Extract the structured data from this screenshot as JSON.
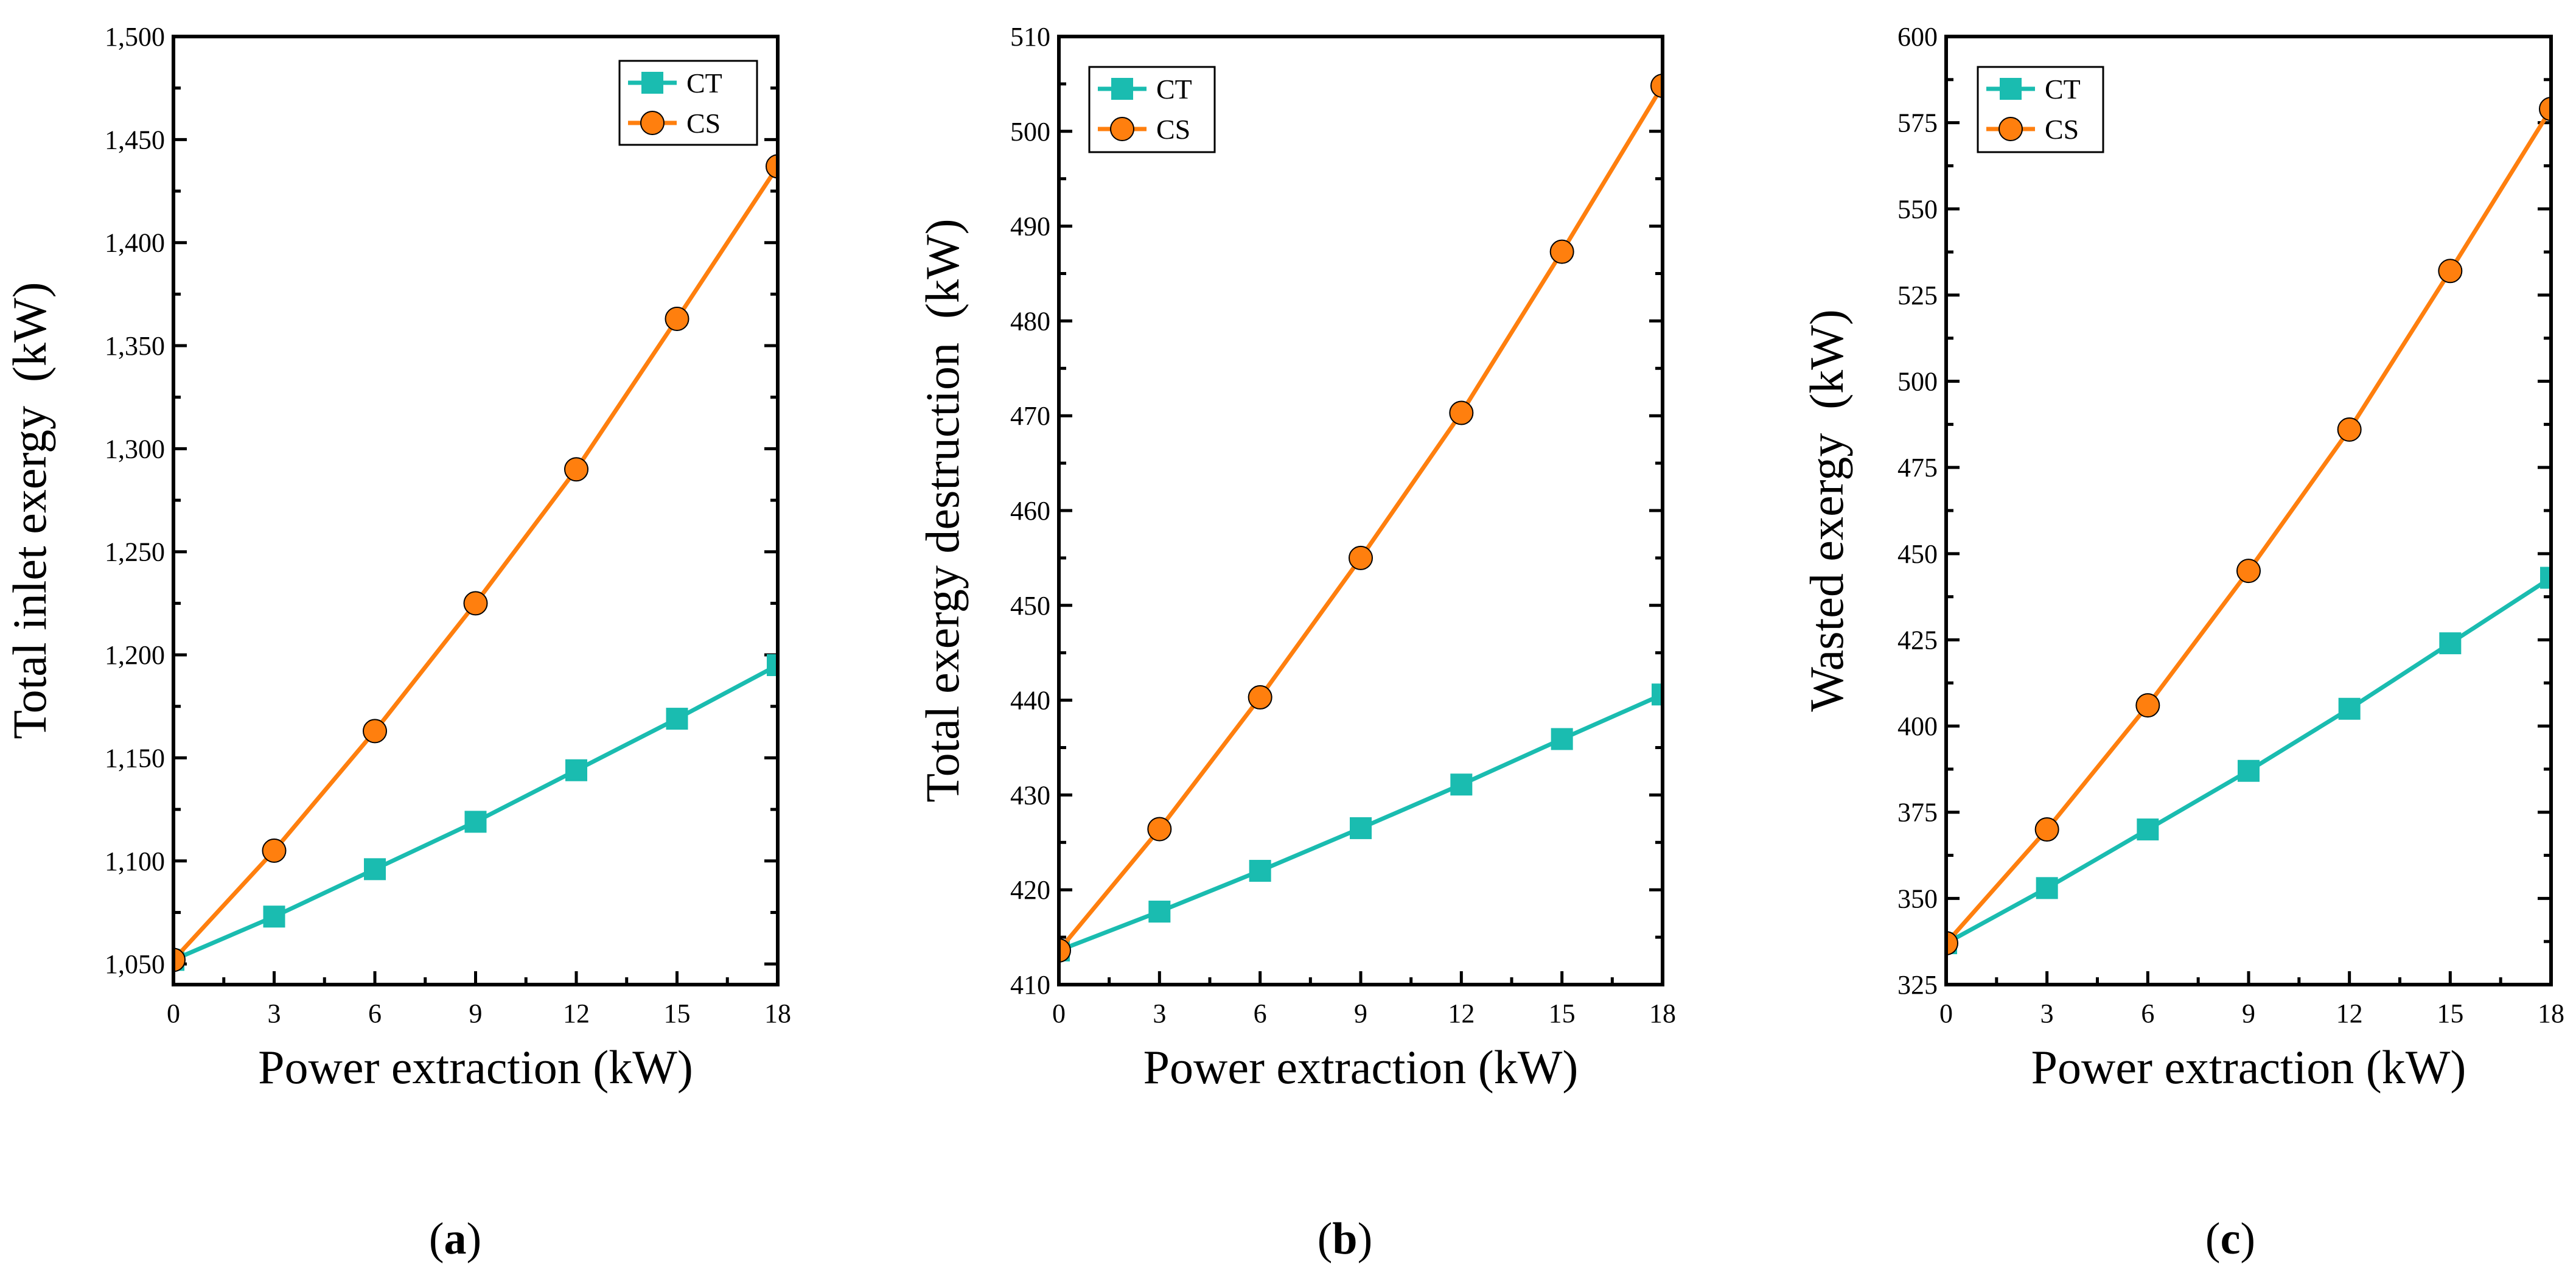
{
  "colors": {
    "CT": "#1ABCB0",
    "CS": "#FF7F0E",
    "axis": "#000000"
  },
  "chart_data": [
    {
      "type": "line",
      "panel": "a",
      "caption": {
        "open": "(",
        "letter": "a",
        "close": ")"
      },
      "xlabel": "Power extraction (kW)",
      "ylabel": "Total inlet exergy  (kW)",
      "x": [
        0,
        3,
        6,
        9,
        12,
        15,
        18
      ],
      "xlim": [
        0,
        18
      ],
      "xticks": [
        0,
        3,
        6,
        9,
        12,
        15,
        18
      ],
      "xtick_labels": [
        "0",
        "3",
        "6",
        "9",
        "12",
        "15",
        "18"
      ],
      "ylim": [
        1040,
        1500
      ],
      "yticks": [
        1050,
        1100,
        1150,
        1200,
        1250,
        1300,
        1350,
        1400,
        1450,
        1500
      ],
      "ytick_labels": [
        "1,050",
        "1,100",
        "1,150",
        "1,200",
        "1,250",
        "1,300",
        "1,350",
        "1,400",
        "1,450",
        "1,500"
      ],
      "legend_position": "top-right",
      "series": [
        {
          "name": "CT",
          "marker": "square",
          "values": [
            1052,
            1073,
            1096,
            1119,
            1144,
            1169,
            1195
          ]
        },
        {
          "name": "CS",
          "marker": "circle",
          "values": [
            1052,
            1105,
            1163,
            1225,
            1290,
            1363,
            1437
          ]
        }
      ]
    },
    {
      "type": "line",
      "panel": "b",
      "caption": {
        "open": "(",
        "letter": "b",
        "close": ")"
      },
      "xlabel": "Power extraction (kW)",
      "ylabel": "Total exergy destruction  (kW)",
      "x": [
        0,
        3,
        6,
        9,
        12,
        15,
        18
      ],
      "xlim": [
        0,
        18
      ],
      "xticks": [
        0,
        3,
        6,
        9,
        12,
        15,
        18
      ],
      "xtick_labels": [
        "0",
        "3",
        "6",
        "9",
        "12",
        "15",
        "18"
      ],
      "ylim": [
        410,
        510
      ],
      "yticks": [
        410,
        420,
        430,
        440,
        450,
        460,
        470,
        480,
        490,
        500,
        510
      ],
      "ytick_labels": [
        "410",
        "420",
        "430",
        "440",
        "450",
        "460",
        "470",
        "480",
        "490",
        "500",
        "510"
      ],
      "legend_position": "top-left",
      "series": [
        {
          "name": "CT",
          "marker": "square",
          "values": [
            413.6,
            417.7,
            422.0,
            426.5,
            431.1,
            435.9,
            440.6
          ]
        },
        {
          "name": "CS",
          "marker": "circle",
          "values": [
            413.6,
            426.4,
            440.3,
            455.0,
            470.3,
            487.3,
            504.8
          ]
        }
      ]
    },
    {
      "type": "line",
      "panel": "c",
      "caption": {
        "open": "(",
        "letter": "c",
        "close": ")"
      },
      "xlabel": "Power extraction (kW)",
      "ylabel": "Wasted exergy  (kW)",
      "x": [
        0,
        3,
        6,
        9,
        12,
        15,
        18
      ],
      "xlim": [
        0,
        18
      ],
      "xticks": [
        0,
        3,
        6,
        9,
        12,
        15,
        18
      ],
      "xtick_labels": [
        "0",
        "3",
        "6",
        "9",
        "12",
        "15",
        "18"
      ],
      "ylim": [
        325,
        600
      ],
      "yticks": [
        325,
        350,
        375,
        400,
        425,
        450,
        475,
        500,
        525,
        550,
        575,
        600
      ],
      "ytick_labels": [
        "325",
        "350",
        "375",
        "400",
        "425",
        "450",
        "475",
        "500",
        "525",
        "550",
        "575",
        "600"
      ],
      "legend_position": "top-left",
      "series": [
        {
          "name": "CT",
          "marker": "square",
          "values": [
            337,
            353,
            370,
            387,
            405,
            424,
            443
          ]
        },
        {
          "name": "CS",
          "marker": "circle",
          "values": [
            337,
            370,
            406,
            445,
            486,
            532,
            579
          ]
        }
      ]
    }
  ]
}
